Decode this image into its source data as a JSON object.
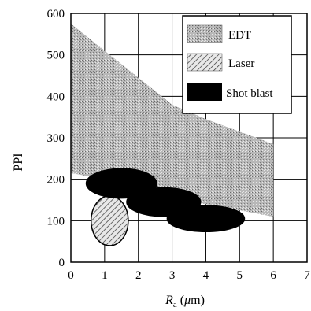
{
  "chart_data": {
    "type": "area",
    "xlabel_main": "R",
    "xlabel_sub": "a",
    "xlabel_open": " (",
    "xlabel_mu": "μ",
    "xlabel_unit": "m)",
    "ylabel": "PPI",
    "xlim": [
      0,
      7
    ],
    "ylim": [
      0,
      600
    ],
    "xticks": [
      "0",
      "1",
      "2",
      "3",
      "4",
      "5",
      "6",
      "7"
    ],
    "yticks": [
      "0",
      "100",
      "200",
      "300",
      "400",
      "500",
      "600"
    ],
    "grid": true,
    "legend_position": "top-right",
    "legend": [
      "EDT",
      "Laser",
      "Shot blast"
    ],
    "series": [
      {
        "name": "EDT",
        "fill": "stippled gray",
        "upper": [
          [
            0,
            575
          ],
          [
            1,
            510
          ],
          [
            2,
            445
          ],
          [
            3,
            380
          ],
          [
            4,
            345
          ],
          [
            5,
            315
          ],
          [
            6,
            285
          ]
        ],
        "lower": [
          [
            0,
            215
          ],
          [
            1,
            200
          ],
          [
            2,
            180
          ],
          [
            3,
            160
          ],
          [
            4,
            140
          ],
          [
            5,
            125
          ],
          [
            6,
            110
          ]
        ]
      },
      {
        "name": "Laser",
        "fill": "hatched",
        "regions": [
          {
            "cx": 1.15,
            "cy": 100,
            "rx": 0.55,
            "ry": 60
          }
        ]
      },
      {
        "name": "Shot blast",
        "fill": "#000000",
        "regions": [
          {
            "cx": 1.5,
            "cy": 190,
            "rx": 1.05,
            "ry": 36
          },
          {
            "cx": 2.75,
            "cy": 145,
            "rx": 1.1,
            "ry": 35
          },
          {
            "cx": 4.0,
            "cy": 105,
            "rx": 1.15,
            "ry": 32
          }
        ]
      }
    ]
  }
}
